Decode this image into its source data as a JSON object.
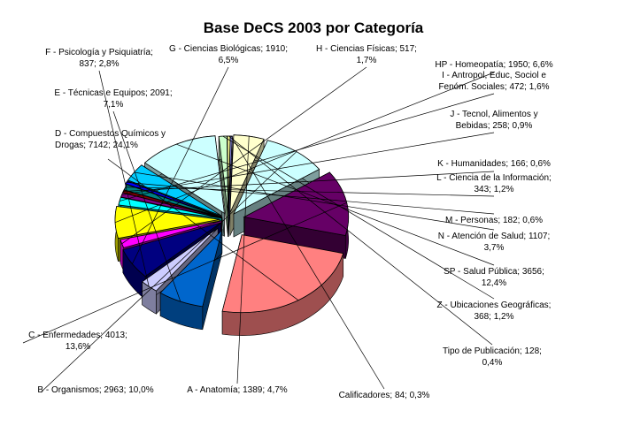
{
  "chart_data": {
    "type": "pie",
    "title": "Base DeCS 2003 por Categoría",
    "slices": [
      {
        "label": "A - Anatomía",
        "value": 1389,
        "percent": "4,7%",
        "color": "#ffffcc",
        "text": [
          "A - Anatomía; 1389; 4,7%"
        ]
      },
      {
        "label": "B - Organismos",
        "value": 2963,
        "percent": "10,0%",
        "color": "#ccffff",
        "text": [
          "B - Organismos; 2963; 10,0%"
        ]
      },
      {
        "label": "C - Enfermedades",
        "value": 4013,
        "percent": "13,6%",
        "color": "#660066",
        "text": [
          "C - Enfermedades; 4013;",
          "13,6%"
        ]
      },
      {
        "label": "D - Compuestos Químicos y Drogas",
        "value": 7142,
        "percent": "24,1%",
        "color": "#ff8080",
        "text": [
          "D - Compuestos Químicos y",
          "Drogas; 7142; 24,1%"
        ]
      },
      {
        "label": "E - Técnicas e Equipos",
        "value": 2091,
        "percent": "7,1%",
        "color": "#0066cc",
        "text": [
          "E - Técnicas e Equipos; 2091;",
          "7,1%"
        ]
      },
      {
        "label": "F - Psicología y Psiquiatría",
        "value": 837,
        "percent": "2,8%",
        "color": "#ccccff",
        "text": [
          "F - Psicología y Psiquiatría;",
          "837; 2,8%"
        ]
      },
      {
        "label": "G - Ciencias Biológicas",
        "value": 1910,
        "percent": "6,5%",
        "color": "#000080",
        "text": [
          "G - Ciencias Biológicas; 1910;",
          "6,5%"
        ]
      },
      {
        "label": "H - Ciencias Físicas",
        "value": 517,
        "percent": "1,7%",
        "color": "#ff00ff",
        "text": [
          "H - Ciencias Físicas; 517;",
          "1,7%"
        ]
      },
      {
        "label": "HP - Homeopatía",
        "value": 1950,
        "percent": "6,6%",
        "color": "#ffff00",
        "text": [
          "HP - Homeopatía; 1950; 6,6%"
        ]
      },
      {
        "label": "I - Antropol, Educ, Sociol e Fenóm. Sociales",
        "value": 472,
        "percent": "1,6%",
        "color": "#00ffff",
        "text": [
          "I - Antropol, Educ, Sociol e",
          "Fenóm. Sociales; 472; 1,6%"
        ]
      },
      {
        "label": "J - Tecnol, Alimentos y Bebidas",
        "value": 258,
        "percent": "0,9%",
        "color": "#800080",
        "text": [
          "J - Tecnol, Alimentos y",
          "Bebidas; 258; 0,9%"
        ]
      },
      {
        "label": "K - Humanidades",
        "value": 166,
        "percent": "0,6%",
        "color": "#800000",
        "text": [
          "K - Humanidades; 166; 0,6%"
        ]
      },
      {
        "label": "L - Ciencia de la Información",
        "value": 343,
        "percent": "1,2%",
        "color": "#008080",
        "text": [
          "L - Ciencia de la Información;",
          "343; 1,2%"
        ]
      },
      {
        "label": "M - Personas",
        "value": 182,
        "percent": "0,6%",
        "color": "#0000ff",
        "text": [
          "M - Personas; 182; 0,6%"
        ]
      },
      {
        "label": "N - Atención de Salud",
        "value": 1107,
        "percent": "3,7%",
        "color": "#00ccff",
        "text": [
          "N - Atención de Salud; 1107;",
          "3,7%"
        ]
      },
      {
        "label": "SP - Salud Pública",
        "value": 3656,
        "percent": "12,4%",
        "color": "#ccffff",
        "text": [
          "SP - Salud Pública; 3656;",
          "12,4%"
        ]
      },
      {
        "label": "Z - Ubicaciones Geográficas",
        "value": 368,
        "percent": "1,2%",
        "color": "#ccffcc",
        "text": [
          "Z - Ubicaciones Geográficas;",
          "368; 1,2%"
        ]
      },
      {
        "label": "Tipo de Publicación",
        "value": 128,
        "percent": "0,4%",
        "color": "#ffff99",
        "text": [
          "Tipo de Publicación; 128;",
          "0,4%"
        ]
      },
      {
        "label": "Calificadores",
        "value": 84,
        "percent": "0,3%",
        "color": "#9999ff",
        "text": [
          "Calificadores; 84; 0,3%"
        ]
      }
    ],
    "exploded": true,
    "three_d": true,
    "legend": "none"
  }
}
